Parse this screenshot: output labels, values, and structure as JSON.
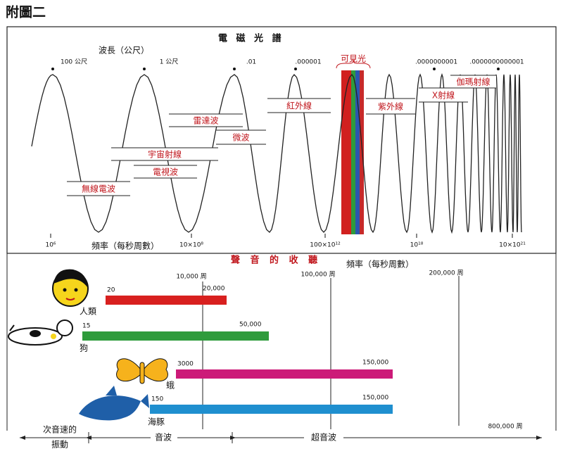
{
  "page_title": "附圖二",
  "spectrum": {
    "title": "電 磁 光 譜",
    "wavelength_label": "波長（公尺）",
    "wavelength_ticks": [
      "100 公尺",
      "1 公尺",
      ".01",
      ".000001",
      ".0000000001",
      ".0000000000001"
    ],
    "frequency_label": "頻率（每秒周數）",
    "frequency_ticks": [
      "10⁶",
      "10×10⁸",
      "100×10¹²",
      "10¹⁸",
      "10×10²¹"
    ],
    "visible": "可見光",
    "bands": [
      "紅外線",
      "紫外線",
      "X射線",
      "伽瑪射線",
      "雷達波",
      "微波",
      "宇宙射線",
      "電視波",
      "無線電波"
    ]
  },
  "hearing": {
    "title": "聲 音 的 收 聽",
    "frequency_label": "頻率（每秒周數）",
    "ticks": [
      "10,000 周",
      "100,000 周",
      "200,000 周",
      "800,000 周"
    ],
    "animals": [
      {
        "name": "人類",
        "low": "20",
        "high": "20,000"
      },
      {
        "name": "狗",
        "low": "15",
        "high": "50,000"
      },
      {
        "name": "蛾",
        "low": "3000",
        "high": "150,000"
      },
      {
        "name": "海豚",
        "low": "150",
        "high": "150,000"
      }
    ],
    "regions": {
      "infrasonic": [
        "次音速的",
        "振動"
      ],
      "sonic": "音波",
      "ultrasonic": "超音波"
    }
  }
}
